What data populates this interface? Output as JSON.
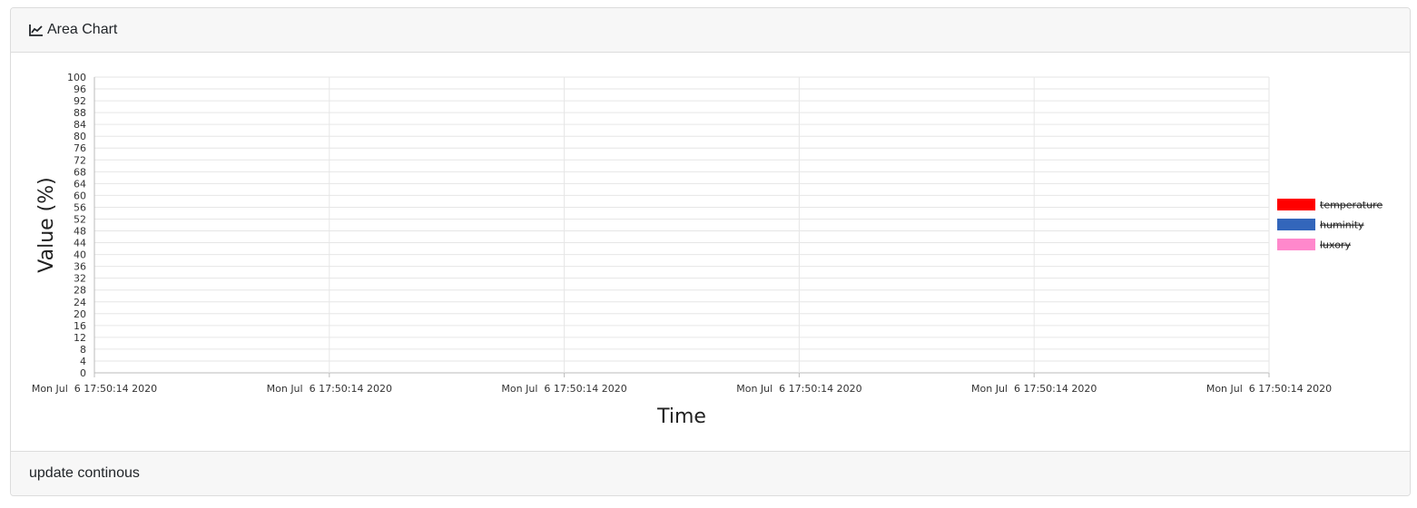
{
  "header": {
    "icon": "area-chart-icon",
    "title": "Area Chart"
  },
  "footer": {
    "text": "update continous"
  },
  "chart_data": {
    "type": "area",
    "title": "",
    "xlabel": "Time",
    "ylabel": "Value (%)",
    "ylim": [
      0,
      100
    ],
    "ytick_step": 4,
    "x_ticks": [
      "Mon Jul  6 17:50:14 2020",
      "Mon Jul  6 17:50:14 2020",
      "Mon Jul  6 17:50:14 2020",
      "Mon Jul  6 17:50:14 2020",
      "Mon Jul  6 17:50:14 2020",
      "Mon Jul  6 17:50:14 2020"
    ],
    "grid": true,
    "legend_position": "right",
    "series": [
      {
        "name": "temperature",
        "color": "#ff0000",
        "hidden": true,
        "values": []
      },
      {
        "name": "huminity",
        "color": "#3366bb",
        "hidden": true,
        "values": []
      },
      {
        "name": "luxory",
        "color": "#ff88cc",
        "hidden": true,
        "values": []
      }
    ]
  }
}
